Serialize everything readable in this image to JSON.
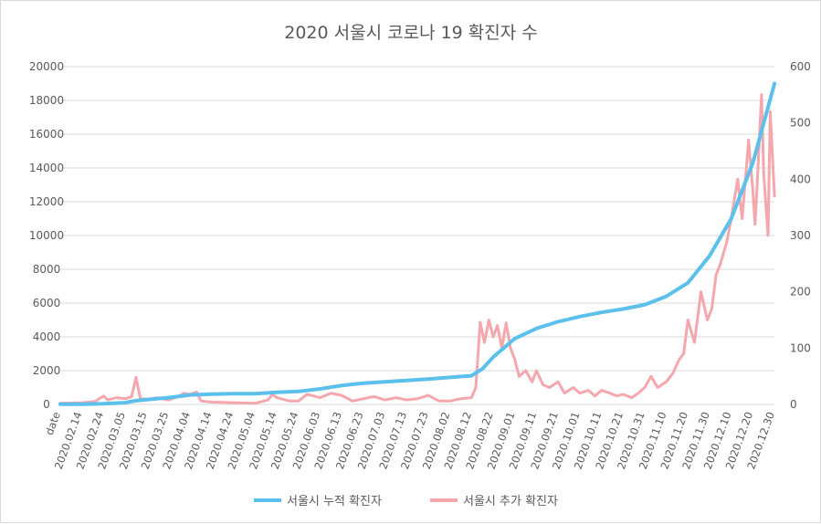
{
  "chart_data": {
    "type": "line",
    "title": "2020 서울시 코로나 19 확진자 수",
    "xlabel": "",
    "ylabel": "",
    "x_ticks": [
      "date",
      "2020.02.14",
      "2020.02.24",
      "2020.03.05",
      "2020.03.15",
      "2020.03.25",
      "2020.04.04",
      "2020.04.14",
      "2020.04.24",
      "2020.05.04",
      "2020.05.14",
      "2020.05.24",
      "2020.06.03",
      "2020.06.13",
      "2020.06.23",
      "2020.07.03",
      "2020.07.13",
      "2020.07.23",
      "2020.08.02",
      "2020.08.12",
      "2020.08.22",
      "2020.09.01",
      "2020.09.11",
      "2020.09.21",
      "2020.10.01",
      "2020.10.11",
      "2020.10.21",
      "2020.10.31",
      "2020.11.10",
      "2020.11.20",
      "2020.11.30",
      "2020.12.10",
      "2020.12.20",
      "2020.12.30"
    ],
    "ylim_left": [
      0,
      20000
    ],
    "yticks_left": [
      0,
      2000,
      4000,
      6000,
      8000,
      10000,
      12000,
      14000,
      16000,
      18000,
      20000
    ],
    "ylim_right": [
      0,
      600
    ],
    "yticks_right": [
      0,
      100,
      200,
      300,
      400,
      500,
      600
    ],
    "grid": true,
    "legend_position": "bottom",
    "series": [
      {
        "name": "서울시 누적 확진자",
        "axis": "left",
        "color": "#5bc0eb",
        "points": [
          [
            "2020.02.04",
            10
          ],
          [
            "2020.02.14",
            15
          ],
          [
            "2020.02.24",
            40
          ],
          [
            "2020.03.05",
            100
          ],
          [
            "2020.03.10",
            220
          ],
          [
            "2020.03.15",
            280
          ],
          [
            "2020.03.25",
            400
          ],
          [
            "2020.04.04",
            560
          ],
          [
            "2020.04.14",
            610
          ],
          [
            "2020.04.24",
            630
          ],
          [
            "2020.05.04",
            640
          ],
          [
            "2020.05.14",
            720
          ],
          [
            "2020.05.24",
            770
          ],
          [
            "2020.06.03",
            920
          ],
          [
            "2020.06.13",
            1120
          ],
          [
            "2020.06.23",
            1260
          ],
          [
            "2020.07.03",
            1340
          ],
          [
            "2020.07.13",
            1420
          ],
          [
            "2020.07.23",
            1500
          ],
          [
            "2020.08.02",
            1600
          ],
          [
            "2020.08.12",
            1700
          ],
          [
            "2020.08.17",
            2100
          ],
          [
            "2020.08.22",
            2800
          ],
          [
            "2020.09.01",
            3900
          ],
          [
            "2020.09.11",
            4500
          ],
          [
            "2020.09.21",
            4900
          ],
          [
            "2020.10.01",
            5200
          ],
          [
            "2020.10.11",
            5450
          ],
          [
            "2020.10.21",
            5650
          ],
          [
            "2020.10.31",
            5900
          ],
          [
            "2020.11.10",
            6400
          ],
          [
            "2020.11.20",
            7200
          ],
          [
            "2020.11.30",
            8800
          ],
          [
            "2020.12.10",
            11000
          ],
          [
            "2020.12.20",
            14300
          ],
          [
            "2020.12.30",
            19000
          ]
        ]
      },
      {
        "name": "서울시 추가 확진자",
        "axis": "right",
        "color": "#f4a7ad",
        "points": [
          [
            "2020.02.04",
            2
          ],
          [
            "2020.02.14",
            3
          ],
          [
            "2020.02.20",
            5
          ],
          [
            "2020.02.24",
            15
          ],
          [
            "2020.02.26",
            8
          ],
          [
            "2020.03.01",
            12
          ],
          [
            "2020.03.05",
            10
          ],
          [
            "2020.03.08",
            14
          ],
          [
            "2020.03.10",
            48
          ],
          [
            "2020.03.12",
            10
          ],
          [
            "2020.03.15",
            9
          ],
          [
            "2020.03.20",
            12
          ],
          [
            "2020.03.25",
            8
          ],
          [
            "2020.03.30",
            15
          ],
          [
            "2020.04.01",
            20
          ],
          [
            "2020.04.04",
            18
          ],
          [
            "2020.04.07",
            22
          ],
          [
            "2020.04.09",
            6
          ],
          [
            "2020.04.14",
            4
          ],
          [
            "2020.04.24",
            3
          ],
          [
            "2020.05.04",
            2
          ],
          [
            "2020.05.10",
            8
          ],
          [
            "2020.05.12",
            18
          ],
          [
            "2020.05.14",
            12
          ],
          [
            "2020.05.20",
            6
          ],
          [
            "2020.05.24",
            6
          ],
          [
            "2020.05.28",
            18
          ],
          [
            "2020.06.03",
            12
          ],
          [
            "2020.06.08",
            20
          ],
          [
            "2020.06.13",
            16
          ],
          [
            "2020.06.18",
            6
          ],
          [
            "2020.06.23",
            10
          ],
          [
            "2020.06.28",
            14
          ],
          [
            "2020.07.03",
            8
          ],
          [
            "2020.07.08",
            12
          ],
          [
            "2020.07.13",
            8
          ],
          [
            "2020.07.18",
            10
          ],
          [
            "2020.07.23",
            16
          ],
          [
            "2020.07.28",
            6
          ],
          [
            "2020.08.02",
            6
          ],
          [
            "2020.08.07",
            10
          ],
          [
            "2020.08.12",
            12
          ],
          [
            "2020.08.14",
            30
          ],
          [
            "2020.08.16",
            146
          ],
          [
            "2020.08.18",
            110
          ],
          [
            "2020.08.20",
            150
          ],
          [
            "2020.08.22",
            120
          ],
          [
            "2020.08.24",
            140
          ],
          [
            "2020.08.26",
            100
          ],
          [
            "2020.08.28",
            145
          ],
          [
            "2020.08.30",
            100
          ],
          [
            "2020.09.01",
            80
          ],
          [
            "2020.09.03",
            50
          ],
          [
            "2020.09.06",
            60
          ],
          [
            "2020.09.09",
            40
          ],
          [
            "2020.09.11",
            60
          ],
          [
            "2020.09.14",
            35
          ],
          [
            "2020.09.17",
            30
          ],
          [
            "2020.09.21",
            40
          ],
          [
            "2020.09.24",
            20
          ],
          [
            "2020.09.28",
            30
          ],
          [
            "2020.10.01",
            20
          ],
          [
            "2020.10.05",
            25
          ],
          [
            "2020.10.08",
            15
          ],
          [
            "2020.10.11",
            25
          ],
          [
            "2020.10.15",
            20
          ],
          [
            "2020.10.18",
            15
          ],
          [
            "2020.10.21",
            18
          ],
          [
            "2020.10.25",
            12
          ],
          [
            "2020.10.28",
            20
          ],
          [
            "2020.10.31",
            30
          ],
          [
            "2020.11.03",
            50
          ],
          [
            "2020.11.06",
            30
          ],
          [
            "2020.11.10",
            40
          ],
          [
            "2020.11.13",
            55
          ],
          [
            "2020.11.16",
            80
          ],
          [
            "2020.11.18",
            90
          ],
          [
            "2020.11.20",
            150
          ],
          [
            "2020.11.23",
            110
          ],
          [
            "2020.11.26",
            200
          ],
          [
            "2020.11.29",
            150
          ],
          [
            "2020.12.01",
            170
          ],
          [
            "2020.12.03",
            230
          ],
          [
            "2020.12.05",
            250
          ],
          [
            "2020.12.08",
            290
          ],
          [
            "2020.12.10",
            330
          ],
          [
            "2020.12.13",
            400
          ],
          [
            "2020.12.15",
            330
          ],
          [
            "2020.12.17",
            420
          ],
          [
            "2020.12.18",
            470
          ],
          [
            "2020.12.20",
            380
          ],
          [
            "2020.12.21",
            320
          ],
          [
            "2020.12.22",
            390
          ],
          [
            "2020.12.24",
            550
          ],
          [
            "2020.12.25",
            410
          ],
          [
            "2020.12.27",
            300
          ],
          [
            "2020.12.28",
            520
          ],
          [
            "2020.12.30",
            370
          ]
        ]
      }
    ]
  }
}
